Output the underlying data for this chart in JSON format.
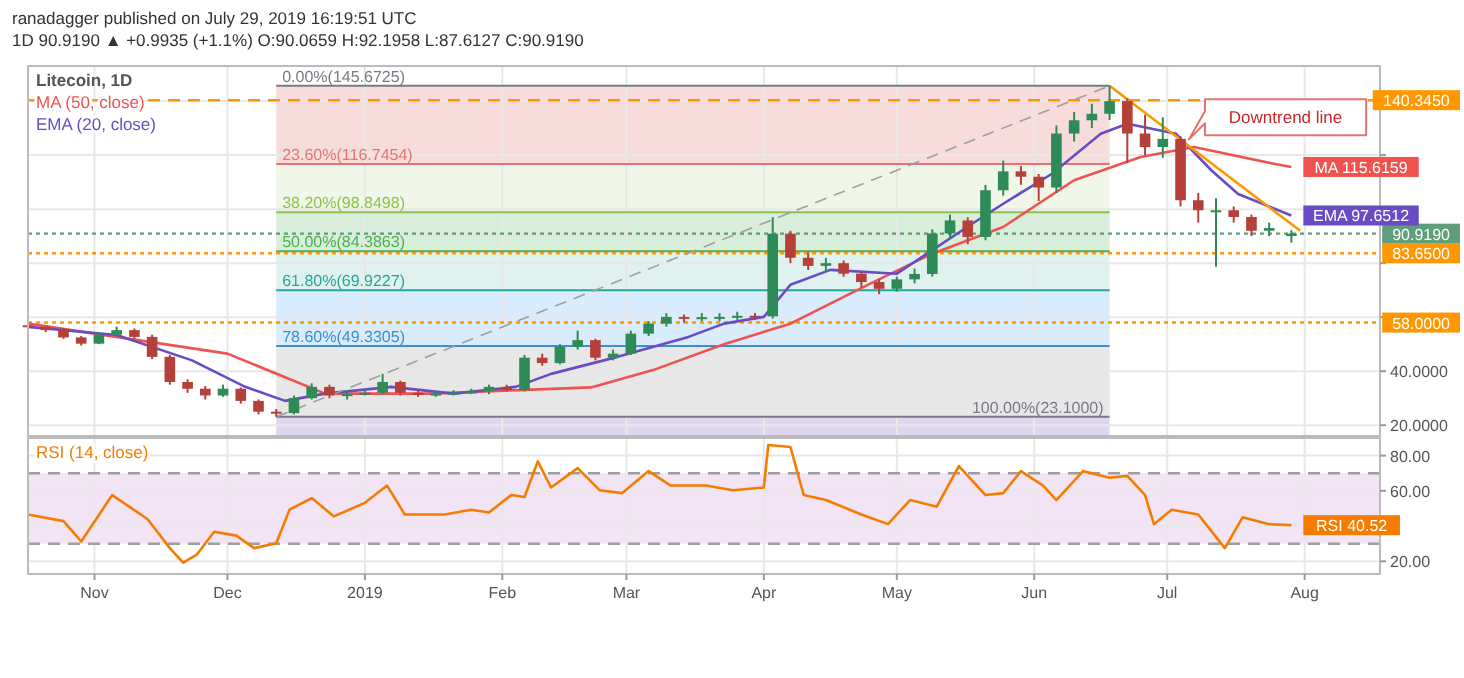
{
  "chart_data": [
    {
      "type": "candlestick",
      "title": "Litecoin, 1D",
      "annotations": [
        "ranadagger published on July 29, 2019 16:19:51 UTC",
        "1D 90.9190 ▲ +0.9935 (+1.1%) O:90.0659 H:92.1958 L:87.6127 C:90.9190",
        {
          "text": "Downtrend line",
          "x": "2019-07-05",
          "y": 124.4
        }
      ],
      "x": [
        "2018-10-17",
        "2018-10-21",
        "2018-10-25",
        "2018-10-29",
        "2018-11-02",
        "2018-11-06",
        "2018-11-10",
        "2018-11-14",
        "2018-11-18",
        "2018-11-22",
        "2018-11-26",
        "2018-11-30",
        "2018-12-04",
        "2018-12-08",
        "2018-12-12",
        "2018-12-16",
        "2018-12-20",
        "2018-12-24",
        "2018-12-28",
        "2019-01-01",
        "2019-01-05",
        "2019-01-09",
        "2019-01-13",
        "2019-01-17",
        "2019-01-21",
        "2019-01-25",
        "2019-01-29",
        "2019-02-02",
        "2019-02-06",
        "2019-02-10",
        "2019-02-14",
        "2019-02-18",
        "2019-02-22",
        "2019-02-26",
        "2019-03-02",
        "2019-03-06",
        "2019-03-10",
        "2019-03-14",
        "2019-03-18",
        "2019-03-22",
        "2019-03-26",
        "2019-03-30",
        "2019-04-03",
        "2019-04-07",
        "2019-04-11",
        "2019-04-15",
        "2019-04-19",
        "2019-04-23",
        "2019-04-27",
        "2019-05-01",
        "2019-05-05",
        "2019-05-09",
        "2019-05-13",
        "2019-05-17",
        "2019-05-21",
        "2019-05-25",
        "2019-05-29",
        "2019-06-02",
        "2019-06-06",
        "2019-06-10",
        "2019-06-14",
        "2019-06-18",
        "2019-06-22",
        "2019-06-26",
        "2019-06-30",
        "2019-07-04",
        "2019-07-08",
        "2019-07-12",
        "2019-07-16",
        "2019-07-20",
        "2019-07-24",
        "2019-07-29"
      ],
      "ohlc": [
        [
          57,
          58,
          55.5,
          56.4
        ],
        [
          56.4,
          57,
          54.5,
          55.2
        ],
        [
          55.2,
          56,
          52,
          52.5
        ],
        [
          52.5,
          53,
          49.5,
          50.2
        ],
        [
          50.2,
          54.5,
          50,
          53.5
        ],
        [
          53.5,
          56.5,
          53,
          55.2
        ],
        [
          55.2,
          55.8,
          52,
          52.7
        ],
        [
          52.7,
          53.5,
          44.5,
          45.3
        ],
        [
          45.3,
          46,
          35,
          36
        ],
        [
          36,
          37,
          32,
          33.5
        ],
        [
          33.5,
          34.5,
          29.5,
          31
        ],
        [
          31,
          35,
          30.5,
          33.5
        ],
        [
          33.5,
          34,
          28,
          29
        ],
        [
          29,
          29.5,
          24,
          25
        ],
        [
          25,
          26,
          23.1,
          24.5
        ],
        [
          24.5,
          31,
          24,
          30
        ],
        [
          30,
          35.5,
          29.5,
          34.2
        ],
        [
          34.2,
          35,
          30,
          31
        ],
        [
          31,
          33,
          29.5,
          31.5
        ],
        [
          31.5,
          33.5,
          31,
          32
        ],
        [
          32,
          39,
          31.5,
          36
        ],
        [
          36,
          36.5,
          31,
          32
        ],
        [
          32,
          33,
          30.5,
          31.5
        ],
        [
          31.5,
          32.5,
          30.5,
          31.7
        ],
        [
          31.7,
          33,
          31,
          32
        ],
        [
          32,
          33.5,
          31.5,
          32.5
        ],
        [
          32.5,
          35,
          31.5,
          34.2
        ],
        [
          34.2,
          35,
          32.5,
          33
        ],
        [
          33,
          46,
          32.5,
          45
        ],
        [
          45,
          46.5,
          42,
          43
        ],
        [
          43,
          50,
          42.5,
          49
        ],
        [
          49,
          55,
          48,
          51.5
        ],
        [
          51.5,
          52,
          44,
          45
        ],
        [
          45,
          48,
          44,
          46.5
        ],
        [
          46.5,
          55,
          46,
          53.9
        ],
        [
          53.9,
          58.5,
          53,
          57.6
        ],
        [
          57.6,
          61.5,
          56.5,
          60.1
        ],
        [
          60.1,
          61,
          58,
          59.5
        ],
        [
          59.5,
          61.5,
          58.5,
          60
        ],
        [
          60,
          61.5,
          58.5,
          60.1
        ],
        [
          60.1,
          62,
          59,
          60.5
        ],
        [
          60.5,
          61.5,
          59,
          60.3
        ],
        [
          60.3,
          97,
          59.5,
          90.9
        ],
        [
          90.9,
          92,
          80,
          82
        ],
        [
          82,
          84,
          77.5,
          79
        ],
        [
          79,
          82,
          77,
          80
        ],
        [
          80,
          81,
          75,
          76.1
        ],
        [
          76.1,
          77,
          71,
          73
        ],
        [
          73,
          74,
          68.5,
          70.5
        ],
        [
          70.5,
          75,
          69.5,
          74
        ],
        [
          74,
          78,
          72.5,
          76
        ],
        [
          76,
          92.5,
          75,
          91
        ],
        [
          91,
          98,
          89,
          95.8
        ],
        [
          95.8,
          97,
          87,
          89.7
        ],
        [
          89.7,
          109,
          88.5,
          107
        ],
        [
          107,
          118,
          105,
          114
        ],
        [
          114,
          116,
          109,
          112
        ],
        [
          112,
          113,
          103,
          108
        ],
        [
          108,
          131,
          106,
          128
        ],
        [
          128,
          136,
          125,
          132.9
        ],
        [
          132.9,
          139,
          130,
          135.3
        ],
        [
          135.3,
          145.6725,
          133,
          140
        ],
        [
          140,
          141,
          117,
          128
        ],
        [
          128,
          135,
          120,
          123
        ],
        [
          123,
          134,
          119,
          126
        ],
        [
          126,
          127,
          101,
          103.3
        ],
        [
          103.3,
          106,
          95,
          99.6
        ],
        [
          99.6,
          104,
          78.7,
          99.6
        ],
        [
          99.6,
          101,
          95,
          97.1
        ],
        [
          97.1,
          98,
          90,
          92
        ],
        [
          92,
          95,
          90,
          93
        ],
        [
          90.0659,
          92.1958,
          87.6127,
          90.919
        ]
      ],
      "series": [
        {
          "type": "line",
          "name": "MA (50, close)",
          "color": "#ef5350",
          "x": [
            "2018-10-17",
            "2018-12-01",
            "2018-12-23",
            "2019-01-16",
            "2019-02-05",
            "2019-02-21",
            "2019-03-07",
            "2019-03-23",
            "2019-04-07",
            "2019-04-25",
            "2019-05-09",
            "2019-05-25",
            "2019-06-10",
            "2019-06-25",
            "2019-07-07",
            "2019-07-25",
            "2019-07-29"
          ],
          "values": [
            57.6,
            46.5,
            31.7,
            31.7,
            33,
            34,
            40.4,
            50,
            57.6,
            72.4,
            83.5,
            93.4,
            110.7,
            119.3,
            123,
            116.8,
            115.6159
          ],
          "value_labels": [
            null,
            null,
            null,
            null,
            null,
            null,
            null,
            null,
            null,
            null,
            null,
            null,
            null,
            null,
            null,
            null,
            "MA 115.6159"
          ]
        },
        {
          "type": "line",
          "name": "EMA (20, close)",
          "color": "#6a4bc4",
          "x": [
            "2018-10-17",
            "2018-11-06",
            "2018-11-23",
            "2018-12-05",
            "2018-12-14",
            "2018-12-23",
            "2019-01-07",
            "2019-01-21",
            "2019-02-04",
            "2019-02-12",
            "2019-02-27",
            "2019-03-15",
            "2019-03-23",
            "2019-04-01",
            "2019-04-07",
            "2019-04-16",
            "2019-05-01",
            "2019-05-09",
            "2019-05-18",
            "2019-05-25",
            "2019-06-05",
            "2019-06-16",
            "2019-06-22",
            "2019-07-03",
            "2019-07-11",
            "2019-07-17",
            "2019-07-29"
          ],
          "values": [
            56.4,
            53.4,
            44,
            34.2,
            29,
            31.7,
            34.2,
            31.7,
            34.2,
            39,
            45.3,
            52.7,
            57.6,
            60.1,
            72,
            77.5,
            76.1,
            84.8,
            94.6,
            102,
            113.1,
            127.9,
            131.6,
            127.9,
            114.3,
            105.6,
            97.6512
          ],
          "value_labels": [
            null,
            null,
            null,
            null,
            null,
            null,
            null,
            null,
            null,
            null,
            null,
            null,
            null,
            null,
            null,
            null,
            null,
            null,
            null,
            null,
            null,
            null,
            null,
            null,
            null,
            null,
            "EMA 97.6512"
          ]
        },
        {
          "type": "line",
          "color": "#9e9e9e",
          "line_style": "dashed",
          "x": [
            "2018-12-12",
            "2019-06-18"
          ],
          "values": [
            23.1,
            145.6725
          ]
        },
        {
          "type": "line",
          "color": "#ff9800",
          "x": [
            "2019-06-18",
            "2019-07-31"
          ],
          "values": [
            145.6725,
            92
          ]
        }
      ],
      "xlim": [
        "2018-10-17",
        "2019-08-18"
      ],
      "xticks": [
        {
          "value": "2018-11-01",
          "label": null
        },
        {
          "value": "2018-12-01",
          "label": null
        },
        {
          "value": "2019-01-01",
          "label": null
        },
        {
          "value": "2019-02-01",
          "label": null
        },
        {
          "value": "2019-03-01",
          "label": null
        },
        {
          "value": "2019-04-01",
          "label": null
        },
        {
          "value": "2019-05-01",
          "label": null
        },
        {
          "value": "2019-06-01",
          "label": null
        },
        {
          "value": "2019-07-01",
          "label": null
        },
        {
          "value": "2019-08-01",
          "label": null
        }
      ],
      "ylim": [
        16,
        153
      ],
      "yticks": [
        {
          "value": 20,
          "label": "20.0000"
        },
        {
          "value": 40,
          "label": "40.0000"
        },
        {
          "value": 60,
          "label": null
        },
        {
          "value": 80,
          "label": null
        },
        {
          "value": 100,
          "label": null
        },
        {
          "value": 120,
          "label": null
        },
        {
          "value": 140,
          "label": null
        }
      ],
      "ref_lines": [
        {
          "axis": "y",
          "value": 145.6725,
          "label": "0.00%(145.6725)",
          "color": "#787b86",
          "line_style": "solid"
        },
        {
          "axis": "y",
          "value": 116.7454,
          "label": "23.60%(116.7454)",
          "color": "#e57373",
          "line_style": "solid"
        },
        {
          "axis": "y",
          "value": 98.8498,
          "label": "38.20%(98.8498)",
          "color": "#8bc34a",
          "line_style": "solid"
        },
        {
          "axis": "y",
          "value": 84.3863,
          "label": "50.00%(84.3863)",
          "color": "#4caf50",
          "line_style": "solid"
        },
        {
          "axis": "y",
          "value": 69.9227,
          "label": "61.80%(69.9227)",
          "color": "#26a69a",
          "line_style": "solid"
        },
        {
          "axis": "y",
          "value": 49.3305,
          "label": "78.60%(49.3305)",
          "color": "#3d8fc9",
          "line_style": "solid"
        },
        {
          "axis": "y",
          "value": 23.1,
          "label": "100.00%(23.1000)",
          "color": "#787b86",
          "line_style": "solid"
        },
        {
          "axis": "y",
          "value": 140.345,
          "label": "140.3450",
          "color": "#ff9800",
          "line_style": "dashed"
        },
        {
          "axis": "y",
          "value": 90.919,
          "label": "90.9190",
          "color": "#5f9e7a",
          "line_style": "dotted"
        },
        {
          "axis": "y",
          "value": 83.65,
          "label": "83.6500",
          "color": "#ff9800",
          "line_style": "dotted"
        },
        {
          "axis": "y",
          "value": 58,
          "label": "58.0000",
          "color": "#ff9800",
          "line_style": "dotted"
        }
      ],
      "bands": [
        {
          "axis": "y",
          "from": 116.7454,
          "to": 145.6725,
          "color": "#e57373"
        },
        {
          "axis": "y",
          "from": 98.8498,
          "to": 116.7454,
          "color": "#c5e1a5"
        },
        {
          "axis": "y",
          "from": 84.3863,
          "to": 98.8498,
          "color": "#66bb6a"
        },
        {
          "axis": "y",
          "from": 69.9227,
          "to": 84.3863,
          "color": "#80cbc4"
        },
        {
          "axis": "y",
          "from": 49.3305,
          "to": 69.9227,
          "color": "#64b5f6"
        },
        {
          "axis": "y",
          "from": 23.1,
          "to": 49.3305,
          "color": "#9e9e9e"
        },
        {
          "axis": "y",
          "from": 16,
          "to": 23.1,
          "color": "#7e57c2"
        }
      ],
      "grid": true,
      "legend": "top left",
      "tick_labels": "y"
    },
    {
      "type": "line",
      "series": [
        {
          "name": "RSI (14, close)",
          "color": "#f57c00",
          "x": [
            "2018-10-17",
            "2018-10-25",
            "2018-10-29",
            "2018-11-05",
            "2018-11-13",
            "2018-11-18",
            "2018-11-21",
            "2018-11-24",
            "2018-11-28",
            "2018-12-03",
            "2018-12-07",
            "2018-12-12",
            "2018-12-15",
            "2018-12-20",
            "2018-12-25",
            "2019-01-01",
            "2019-01-06",
            "2019-01-10",
            "2019-01-19",
            "2019-01-25",
            "2019-01-29",
            "2019-02-03",
            "2019-02-06",
            "2019-02-09",
            "2019-02-12",
            "2019-02-18",
            "2019-02-23",
            "2019-02-28",
            "2019-03-06",
            "2019-03-11",
            "2019-03-19",
            "2019-03-25",
            "2019-04-01",
            "2019-04-02",
            "2019-04-07",
            "2019-04-10",
            "2019-04-15",
            "2019-04-23",
            "2019-04-29",
            "2019-05-04",
            "2019-05-10",
            "2019-05-15",
            "2019-05-21",
            "2019-05-25",
            "2019-05-29",
            "2019-06-03",
            "2019-06-06",
            "2019-06-12",
            "2019-06-18",
            "2019-06-22",
            "2019-06-26",
            "2019-06-28",
            "2019-07-02",
            "2019-07-08",
            "2019-07-14",
            "2019-07-18",
            "2019-07-24",
            "2019-07-29"
          ],
          "values": [
            46.6,
            42.8,
            31.3,
            57.6,
            43.9,
            27.5,
            19.2,
            23.6,
            36.8,
            34.6,
            27.5,
            30.2,
            49.3,
            55.9,
            45.5,
            53.2,
            63,
            46.6,
            46.6,
            49.3,
            47.7,
            57.6,
            56.5,
            76.7,
            61.9,
            72.9,
            60.3,
            58.7,
            71.2,
            63,
            63,
            60.3,
            61.9,
            86,
            84.9,
            57.6,
            54.8,
            46.6,
            41.1,
            54.8,
            51,
            74,
            57.6,
            58.7,
            71.2,
            63,
            54.8,
            71.2,
            67.4,
            68.5,
            57.6,
            41.1,
            49.3,
            46.6,
            27.5,
            45,
            41.1,
            40.52
          ],
          "value_labels": [
            null,
            null,
            null,
            null,
            null,
            null,
            null,
            null,
            null,
            null,
            null,
            null,
            null,
            null,
            null,
            null,
            null,
            null,
            null,
            null,
            null,
            null,
            null,
            null,
            null,
            null,
            null,
            null,
            null,
            null,
            null,
            null,
            null,
            null,
            null,
            null,
            null,
            null,
            null,
            null,
            null,
            null,
            null,
            null,
            null,
            null,
            null,
            null,
            null,
            null,
            null,
            null,
            null,
            null,
            null,
            null,
            null,
            "RSI 40.52"
          ]
        }
      ],
      "xlim": [
        "2018-10-17",
        "2019-08-18"
      ],
      "xticks": [
        {
          "value": "2018-11-01",
          "label": "Nov"
        },
        {
          "value": "2018-12-01",
          "label": "Dec"
        },
        {
          "value": "2019-01-01",
          "label": "2019"
        },
        {
          "value": "2019-02-01",
          "label": "Feb"
        },
        {
          "value": "2019-03-01",
          "label": "Mar"
        },
        {
          "value": "2019-04-01",
          "label": "Apr"
        },
        {
          "value": "2019-05-01",
          "label": "May"
        },
        {
          "value": "2019-06-01",
          "label": "Jun"
        },
        {
          "value": "2019-07-01",
          "label": "Jul"
        },
        {
          "value": "2019-08-01",
          "label": "Aug"
        }
      ],
      "ylim": [
        12.8,
        90
      ],
      "yticks": [
        {
          "value": 20,
          "label": "20.00"
        },
        {
          "value": 40,
          "label": null
        },
        {
          "value": 60,
          "label": "60.00"
        },
        {
          "value": 80,
          "label": "80.00"
        }
      ],
      "ref_lines": [
        {
          "axis": "y",
          "value": 30,
          "color": "#9e9e9e",
          "line_style": "dashed"
        },
        {
          "axis": "y",
          "value": 70,
          "color": "#9e9e9e",
          "line_style": "dashed"
        }
      ],
      "bands": [
        {
          "axis": "y",
          "from": 30,
          "to": 70,
          "color": "#ce93d8"
        }
      ],
      "grid": true,
      "legend": "top left"
    }
  ]
}
